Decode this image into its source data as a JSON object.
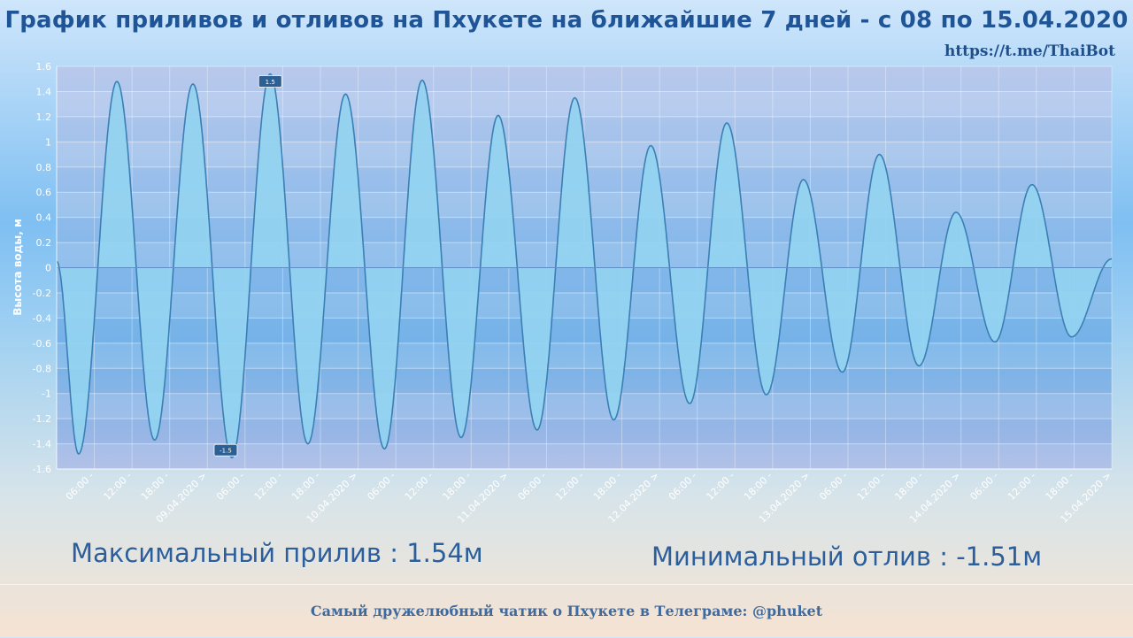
{
  "header": {
    "title": "График приливов и отливов на Пхукете на ближайшие 7 дней - с 08 по 15.04.2020",
    "link": "https://t.me/ThaiBot"
  },
  "stats": {
    "max_label": "Максимальный прилив : 1.54м",
    "min_label": "Минимальный отлив : -1.51м"
  },
  "footer": {
    "text": "Самый дружелюбный чатик о Пхукете в Телеграме: @phuket"
  },
  "chart_data": {
    "type": "area",
    "title": "",
    "xlabel": "",
    "ylabel": "Высота воды, м",
    "ylim": [
      -1.6,
      1.6
    ],
    "yticks": [
      1.6,
      1.4,
      1.2,
      1,
      0.8,
      0.6,
      0.4,
      0.2,
      0,
      -0.2,
      -0.4,
      -0.6,
      -0.8,
      -1,
      -1.2,
      -1.4,
      -1.6
    ],
    "x_unit": "hours since start of 08.04.2020",
    "x_range": [
      0,
      168
    ],
    "x_tick_labels": [
      {
        "x": 6,
        "label": "06:00 -"
      },
      {
        "x": 12,
        "label": "12:00 -"
      },
      {
        "x": 18,
        "label": "18:00 -"
      },
      {
        "x": 24,
        "label": "09.04.2020 >"
      },
      {
        "x": 30,
        "label": "06:00 -"
      },
      {
        "x": 36,
        "label": "12:00 -"
      },
      {
        "x": 42,
        "label": "18:00 -"
      },
      {
        "x": 48,
        "label": "10.04.2020 >"
      },
      {
        "x": 54,
        "label": "06:00 -"
      },
      {
        "x": 60,
        "label": "12:00 -"
      },
      {
        "x": 66,
        "label": "18:00 -"
      },
      {
        "x": 72,
        "label": "11.04.2020 >"
      },
      {
        "x": 78,
        "label": "06:00 -"
      },
      {
        "x": 84,
        "label": "12:00 -"
      },
      {
        "x": 90,
        "label": "18:00 -"
      },
      {
        "x": 96,
        "label": "12.04.2020 >"
      },
      {
        "x": 102,
        "label": "06:00 -"
      },
      {
        "x": 108,
        "label": "12:00 -"
      },
      {
        "x": 114,
        "label": "18:00 -"
      },
      {
        "x": 120,
        "label": "13.04.2020 >"
      },
      {
        "x": 126,
        "label": "06:00 -"
      },
      {
        "x": 132,
        "label": "12:00 -"
      },
      {
        "x": 138,
        "label": "18:00 -"
      },
      {
        "x": 144,
        "label": "14.04.2020 >"
      },
      {
        "x": 150,
        "label": "06:00 -"
      },
      {
        "x": 156,
        "label": "12:00 -"
      },
      {
        "x": 162,
        "label": "18:00 -"
      },
      {
        "x": 168,
        "label": "15.04.2020 >"
      }
    ],
    "extrema": [
      {
        "x": 0,
        "y": 0.05
      },
      {
        "x": 3.5,
        "y": -1.48
      },
      {
        "x": 9.6,
        "y": 1.48
      },
      {
        "x": 15.6,
        "y": -1.37
      },
      {
        "x": 21.7,
        "y": 1.46
      },
      {
        "x": 27.9,
        "y": -1.51
      },
      {
        "x": 34.0,
        "y": 1.54
      },
      {
        "x": 40.0,
        "y": -1.4
      },
      {
        "x": 46.0,
        "y": 1.38
      },
      {
        "x": 52.2,
        "y": -1.44
      },
      {
        "x": 58.2,
        "y": 1.49
      },
      {
        "x": 64.4,
        "y": -1.35
      },
      {
        "x": 70.3,
        "y": 1.21
      },
      {
        "x": 76.5,
        "y": -1.29
      },
      {
        "x": 82.5,
        "y": 1.35
      },
      {
        "x": 88.7,
        "y": -1.21
      },
      {
        "x": 94.6,
        "y": 0.97
      },
      {
        "x": 100.8,
        "y": -1.08
      },
      {
        "x": 106.7,
        "y": 1.15
      },
      {
        "x": 113.0,
        "y": -1.01
      },
      {
        "x": 118.9,
        "y": 0.7
      },
      {
        "x": 125.1,
        "y": -0.83
      },
      {
        "x": 131.0,
        "y": 0.9
      },
      {
        "x": 137.3,
        "y": -0.78
      },
      {
        "x": 143.2,
        "y": 0.44
      },
      {
        "x": 149.4,
        "y": -0.59
      },
      {
        "x": 155.3,
        "y": 0.66
      },
      {
        "x": 161.6,
        "y": -0.55
      },
      {
        "x": 168,
        "y": 0.07
      }
    ],
    "annotations": [
      {
        "x": 34.0,
        "y": 1.54,
        "label": "1.5"
      },
      {
        "x": 27.9,
        "y": -1.51,
        "label": "-1.5"
      }
    ],
    "grid": true,
    "colors": {
      "line": "#3c7fb5",
      "fill": "#9edcf5",
      "badge": "#2c5f93"
    }
  }
}
